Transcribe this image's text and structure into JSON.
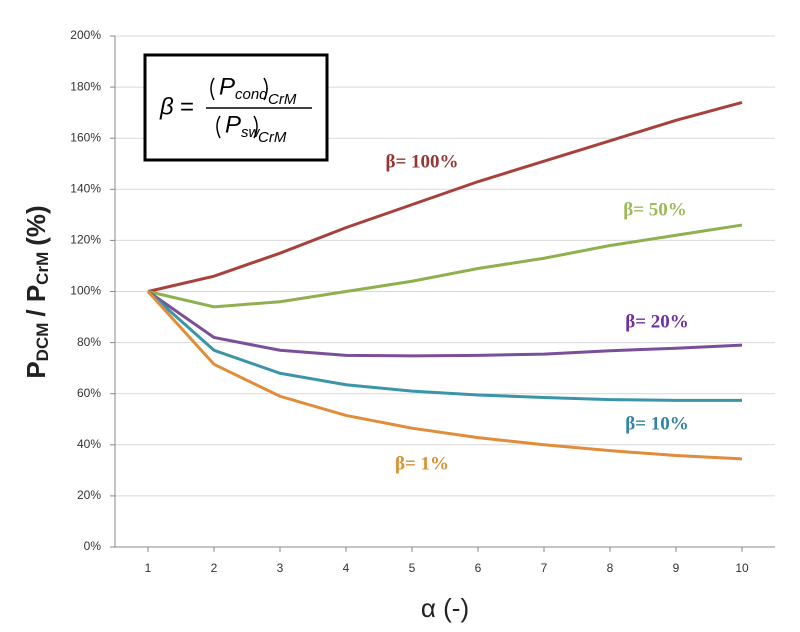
{
  "chart_data": {
    "type": "line",
    "ylabel_parts": [
      "P",
      "DCM",
      "/ P",
      "CrM",
      "(%)"
    ],
    "xlabel": "α (-)",
    "x": [
      1,
      2,
      3,
      4,
      5,
      6,
      7,
      8,
      9,
      10
    ],
    "xlim": [
      0.5,
      10.5
    ],
    "xticks": [
      1,
      2,
      3,
      4,
      5,
      6,
      7,
      8,
      9,
      10
    ],
    "ylim": [
      0,
      200
    ],
    "yticks": [
      {
        "value": 0,
        "label": "0%"
      },
      {
        "value": 20,
        "label": "20%"
      },
      {
        "value": 40,
        "label": "40%"
      },
      {
        "value": 60,
        "label": "60%"
      },
      {
        "value": 80,
        "label": "80%"
      },
      {
        "value": 100,
        "label": "100%"
      },
      {
        "value": 120,
        "label": "120%"
      },
      {
        "value": 140,
        "label": "140%"
      },
      {
        "value": 160,
        "label": "160%"
      },
      {
        "value": 180,
        "label": "180%"
      },
      {
        "value": 200,
        "label": "200%"
      }
    ],
    "grid": true,
    "series": [
      {
        "name": "β= 100%",
        "color": "#a8413c",
        "label_color": "#943634",
        "values": [
          100,
          106,
          115,
          125,
          134,
          143,
          151,
          159,
          167,
          174
        ]
      },
      {
        "name": "β= 50%",
        "color": "#8fb04f",
        "label_color": "#9bbb59",
        "values": [
          100,
          94,
          96,
          100,
          104,
          109,
          113,
          118,
          122,
          126
        ]
      },
      {
        "name": "β= 20%",
        "color": "#7a4f9a",
        "label_color": "#7030a0",
        "values": [
          100,
          82,
          77,
          75,
          74.8,
          75,
          75.5,
          76.8,
          77.8,
          79
        ]
      },
      {
        "name": "β= 10%",
        "color": "#3b95a8",
        "label_color": "#31859c",
        "values": [
          100,
          77,
          68,
          63.5,
          61,
          59.5,
          58.5,
          57.7,
          57.4,
          57.4
        ]
      },
      {
        "name": "β= 1%",
        "color": "#e08c3a",
        "label_color": "#d9902e",
        "values": [
          100,
          71.5,
          59,
          51.5,
          46.5,
          42.8,
          40,
          37.7,
          35.8,
          34.5
        ]
      }
    ]
  },
  "formula": {
    "lhs": "β",
    "eq": "=",
    "num_base": "P",
    "num_sub": "cond",
    "num_outer_sub": "CrM",
    "den_base": "P",
    "den_sub": "sw",
    "den_outer_sub": "CrM"
  }
}
